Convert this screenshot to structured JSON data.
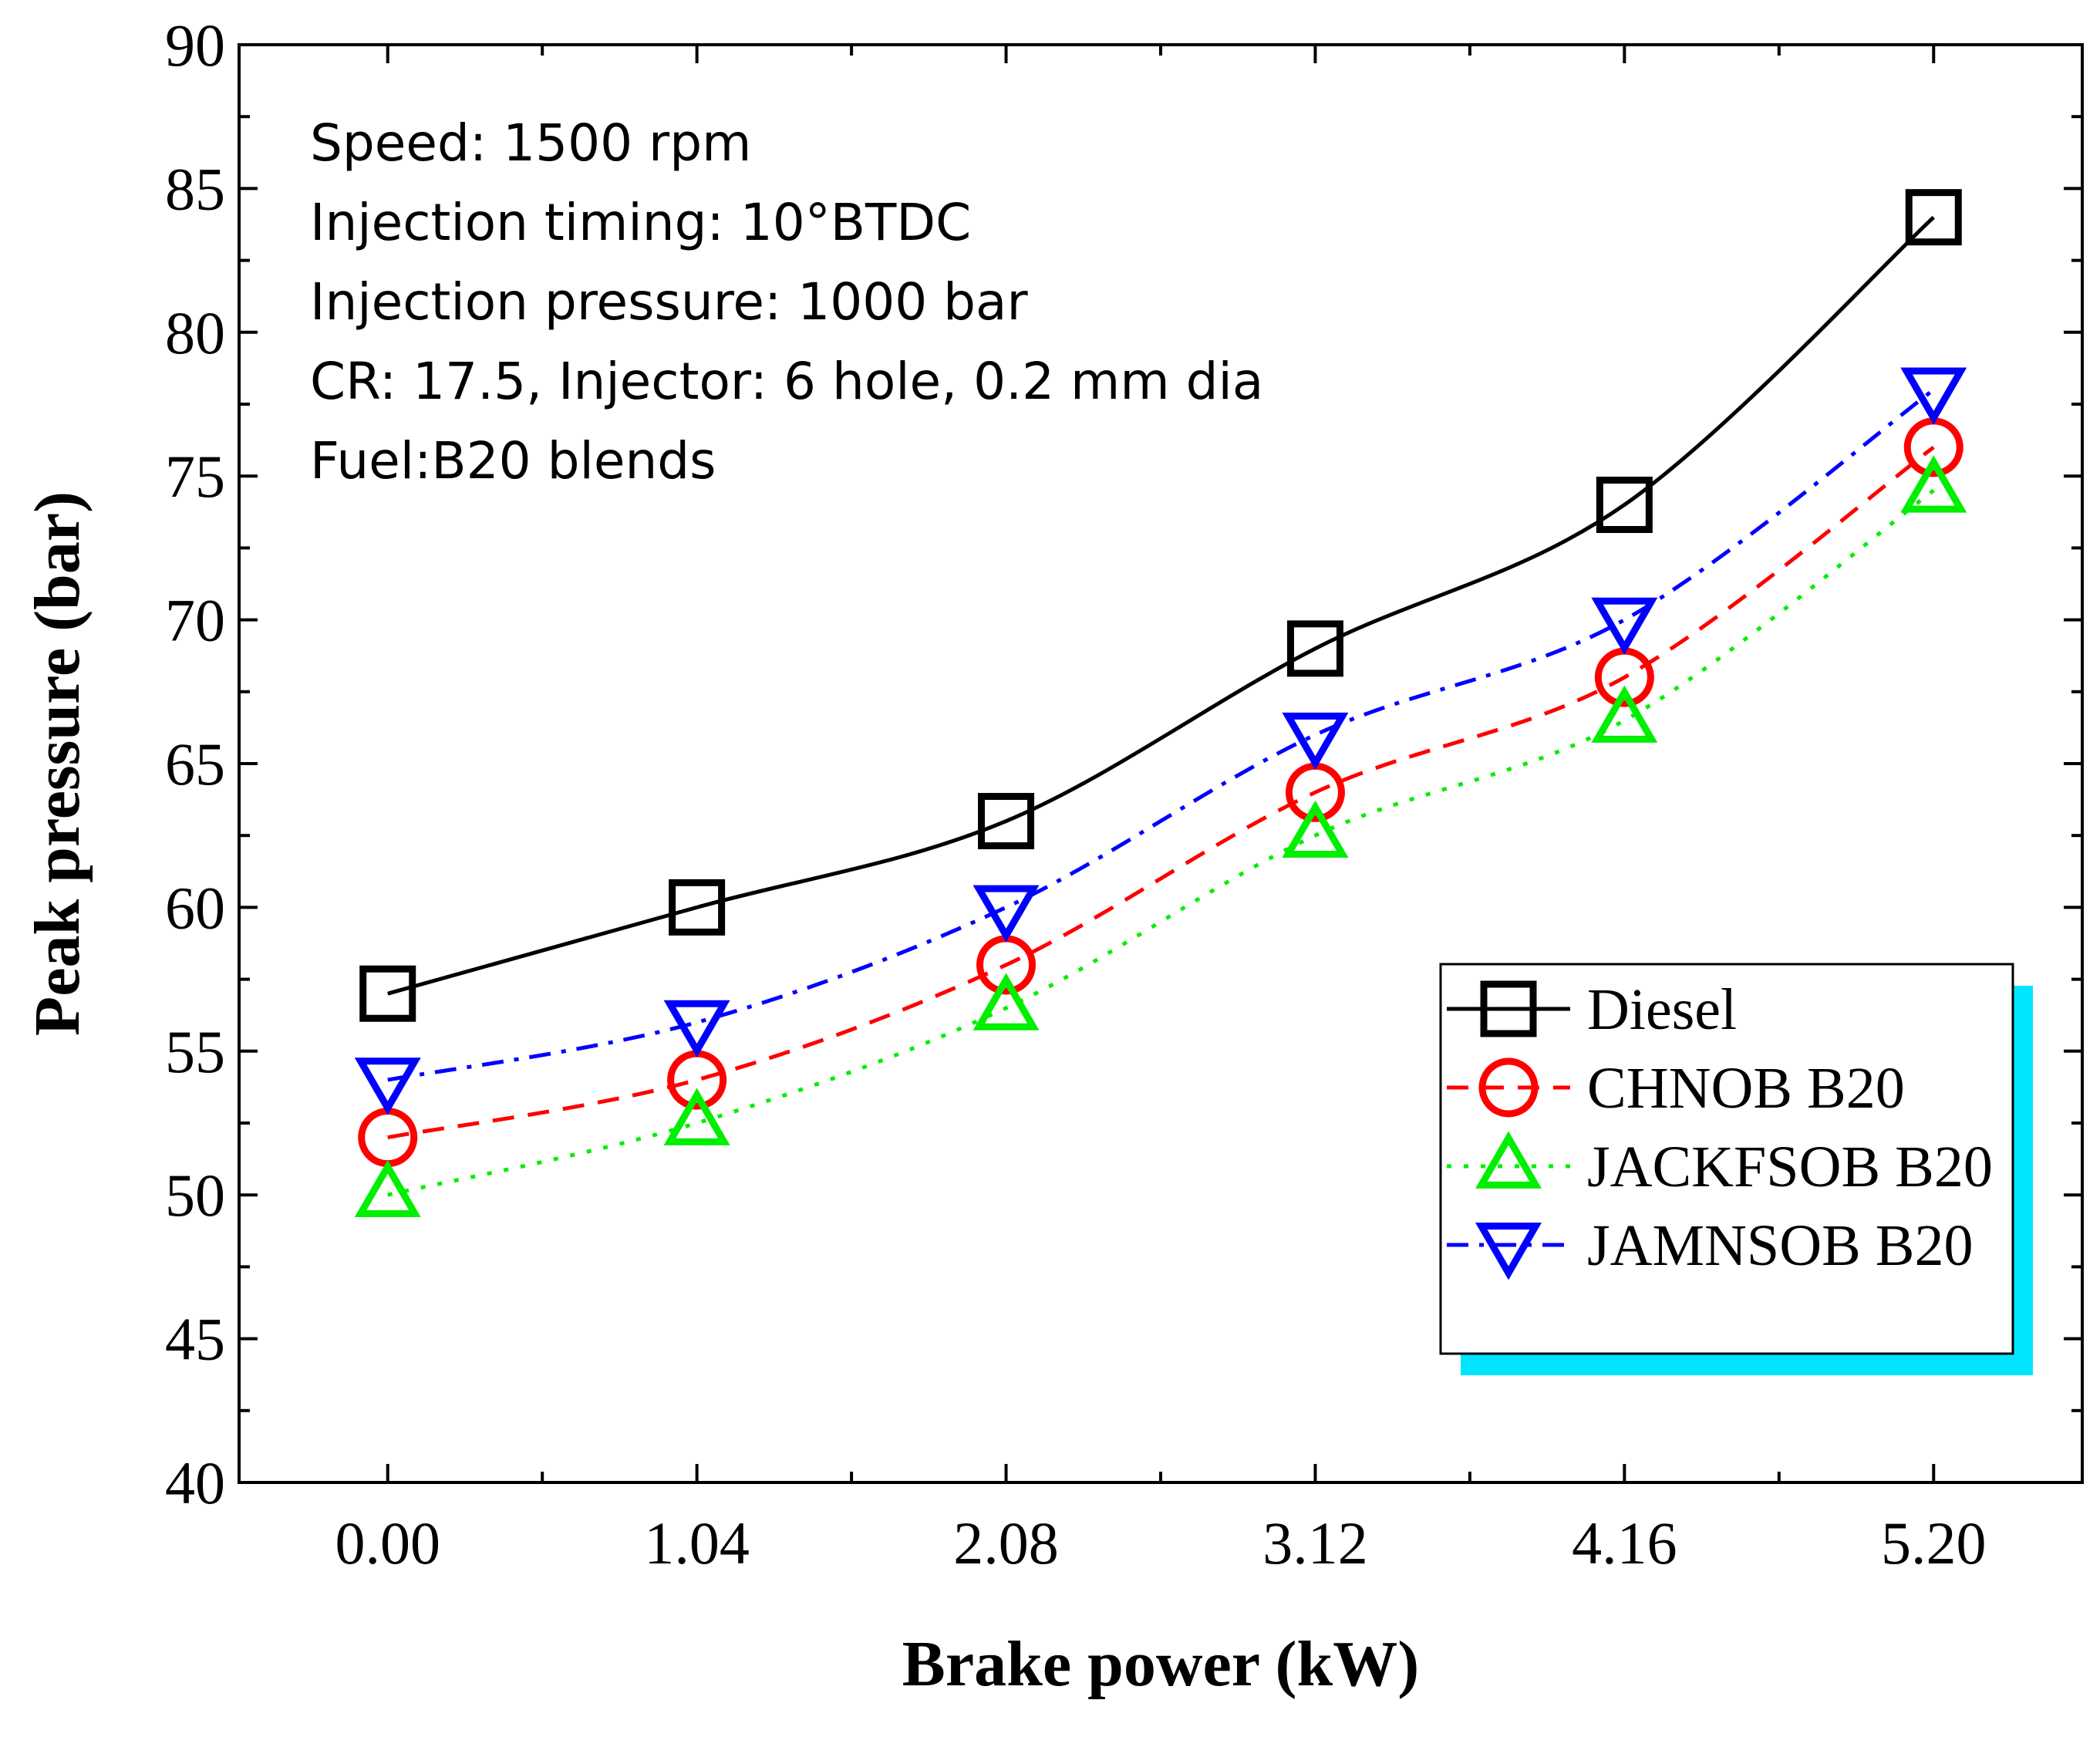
{
  "chart_data": {
    "type": "line",
    "xlabel": "Brake power (kW)",
    "ylabel": "Peak pressure (bar)",
    "categories": [
      "0.00",
      "1.04",
      "2.08",
      "3.12",
      "4.16",
      "5.20"
    ],
    "x": [
      0.0,
      1.04,
      2.08,
      3.12,
      4.16,
      5.2
    ],
    "xlim": [
      -0.5,
      5.7
    ],
    "ylim": [
      40,
      90
    ],
    "yticks": [
      "40",
      "45",
      "50",
      "55",
      "60",
      "65",
      "70",
      "75",
      "80",
      "85",
      "90"
    ],
    "series": [
      {
        "name": "Diesel",
        "values": [
          57,
          60,
          63,
          69,
          74,
          84
        ],
        "color": "#000000",
        "marker": "square",
        "line": "solid"
      },
      {
        "name": "CHNOB B20",
        "values": [
          52,
          54,
          58,
          64,
          68,
          76
        ],
        "color": "#ff0000",
        "marker": "circle",
        "line": "dashed"
      },
      {
        "name": "JACKFSOB B20",
        "values": [
          50,
          52.5,
          56.5,
          62.5,
          66.5,
          74.5
        ],
        "color": "#00ee00",
        "marker": "triangle-up",
        "line": "dotted"
      },
      {
        "name": "JAMNSOB B20",
        "values": [
          54,
          56,
          60,
          66,
          70,
          78
        ],
        "color": "#0000ff",
        "marker": "triangle-down",
        "line": "dash-dot"
      }
    ],
    "annotations": [
      "Speed: 1500 rpm",
      "Injection timing: 10°BTDC",
      "Injection pressure: 1000 bar",
      "CR: 17.5, Injector: 6 hole, 0.2 mm dia",
      "Fuel:B20 blends"
    ],
    "legend": {
      "position": "right",
      "shadow_color": "#00e5ff"
    }
  }
}
